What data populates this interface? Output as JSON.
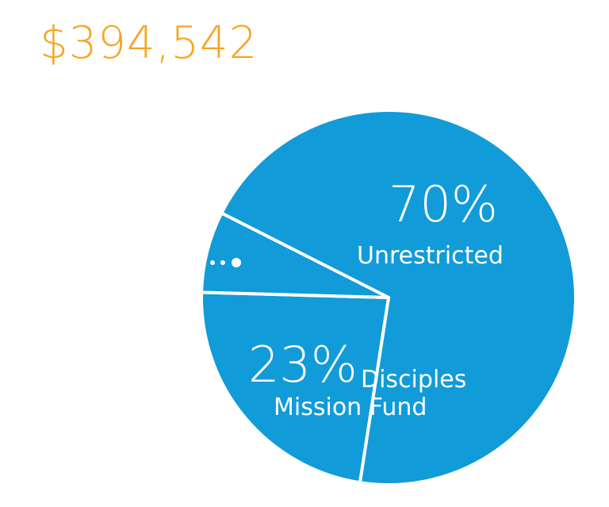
{
  "chart_data": {
    "type": "pie",
    "title": "$394,542",
    "categories": [
      "Unrestricted",
      "Disciples Mission Fund",
      null
    ],
    "values": [
      70,
      23,
      7
    ],
    "value_labels": [
      "70%",
      "23%",
      null
    ],
    "color": "#119bd9",
    "title_color": "#f5a623"
  }
}
